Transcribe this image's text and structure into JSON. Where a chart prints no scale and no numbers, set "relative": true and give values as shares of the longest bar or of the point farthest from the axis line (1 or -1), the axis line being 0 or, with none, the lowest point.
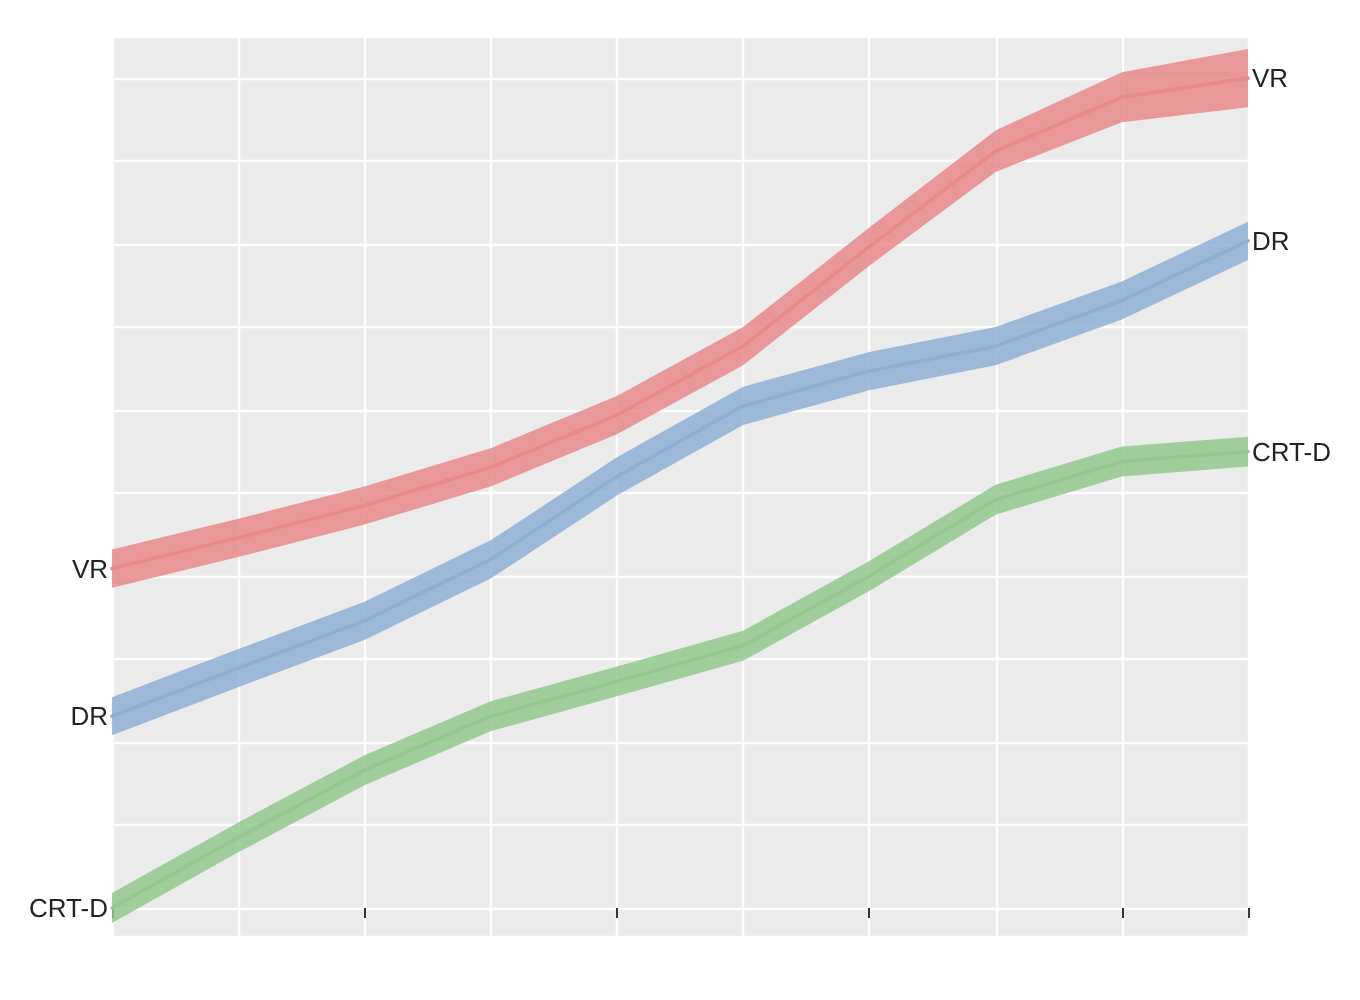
{
  "chart_data": {
    "type": "line",
    "relative": true,
    "categories": [
      null,
      null,
      null,
      null,
      null,
      null,
      null,
      null,
      null,
      null
    ],
    "grid": true,
    "legend": false,
    "marker": "none",
    "line_style": "solid",
    "series": [
      {
        "name": "VR",
        "color": "#e8898b",
        "values": [
          0.409,
          0.446,
          0.485,
          0.531,
          0.594,
          0.677,
          0.797,
          0.912,
          0.977,
          1
        ],
        "lower": [
          0.386,
          0.423,
          0.462,
          0.508,
          0.571,
          0.654,
          0.774,
          0.887,
          0.947,
          0.965
        ],
        "upper": [
          0.432,
          0.469,
          0.508,
          0.554,
          0.617,
          0.7,
          0.82,
          0.937,
          1.007,
          1.035
        ]
      },
      {
        "name": "DR",
        "color": "#8fb0d6",
        "values": [
          0.231,
          0.289,
          0.346,
          0.42,
          0.52,
          0.605,
          0.647,
          0.677,
          0.732,
          0.804
        ],
        "lower": [
          0.208,
          0.266,
          0.323,
          0.397,
          0.497,
          0.582,
          0.624,
          0.654,
          0.709,
          0.781
        ],
        "upper": [
          0.254,
          0.312,
          0.369,
          0.443,
          0.543,
          0.628,
          0.67,
          0.7,
          0.755,
          0.827
        ]
      },
      {
        "name": "CRT-D",
        "color": "#93c98d",
        "values": [
          0,
          0.085,
          0.166,
          0.231,
          0.273,
          0.316,
          0.4,
          0.492,
          0.538,
          0.55
        ],
        "lower": [
          -0.018,
          0.067,
          0.148,
          0.213,
          0.255,
          0.298,
          0.382,
          0.474,
          0.52,
          0.532
        ],
        "upper": [
          0.018,
          0.103,
          0.184,
          0.249,
          0.291,
          0.334,
          0.418,
          0.51,
          0.556,
          0.568
        ]
      }
    ]
  }
}
